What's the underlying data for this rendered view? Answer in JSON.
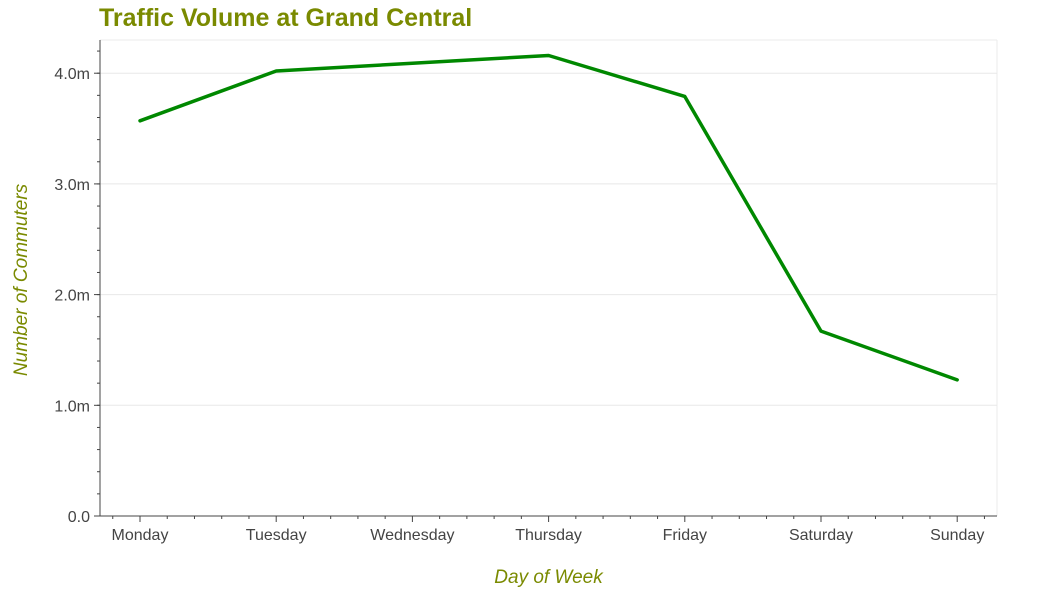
{
  "chart_data": {
    "type": "line",
    "title": "Traffic Volume at Grand Central",
    "xlabel": "Day of Week",
    "ylabel": "Number of Commuters",
    "categories": [
      "Monday",
      "Tuesday",
      "Wednesday",
      "Thursday",
      "Friday",
      "Saturday",
      "Sunday"
    ],
    "series": [
      {
        "values": [
          3.57,
          4.02,
          4.09,
          4.16,
          3.79,
          1.67,
          1.23
        ],
        "color": "#008800"
      }
    ],
    "ylim": [
      0,
      4.3
    ],
    "y_ticks": [
      0,
      1.0,
      2.0,
      3.0,
      4.0
    ],
    "y_tick_labels": [
      "0.0",
      "1.0m",
      "2.0m",
      "3.0m",
      "4.0m"
    ],
    "y_unit": "millions",
    "grid": true,
    "title_color": "#7a8a00",
    "axis_label_color": "#7a8a00"
  }
}
